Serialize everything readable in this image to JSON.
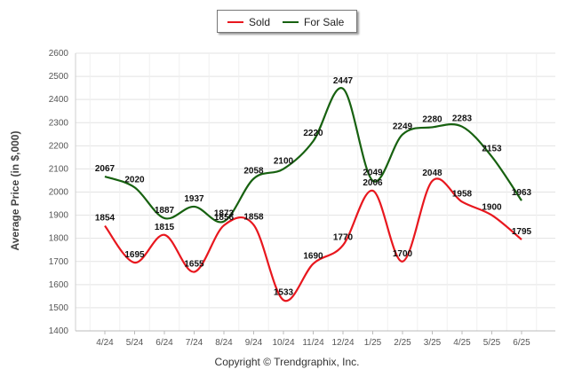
{
  "chart_data": {
    "type": "line",
    "categories": [
      "4/24",
      "5/24",
      "6/24",
      "7/24",
      "8/24",
      "9/24",
      "10/24",
      "11/24",
      "12/24",
      "1/25",
      "2/25",
      "3/25",
      "4/25",
      "5/25",
      "6/25"
    ],
    "series": [
      {
        "name": "Sold",
        "color": "#e8171e",
        "values": [
          1854,
          1695,
          1815,
          1655,
          1856,
          1858,
          1533,
          1690,
          1770,
          2006,
          1700,
          2048,
          1958,
          1900,
          1795
        ]
      },
      {
        "name": "For Sale",
        "color": "#176110",
        "values": [
          2067,
          2020,
          1887,
          1937,
          1873,
          2058,
          2100,
          2220,
          2447,
          2049,
          2249,
          2280,
          2283,
          2153,
          1963
        ]
      }
    ],
    "ylabel": "Average Price (in $,000)",
    "xlabel": "",
    "ylim": [
      1400,
      2600
    ],
    "yticks": [
      1400,
      1500,
      1600,
      1700,
      1800,
      1900,
      2000,
      2100,
      2200,
      2300,
      2400,
      2500,
      2600
    ],
    "grid": true,
    "legend": "top-center"
  },
  "footer": "Copyright © Trendgraphix, Inc."
}
